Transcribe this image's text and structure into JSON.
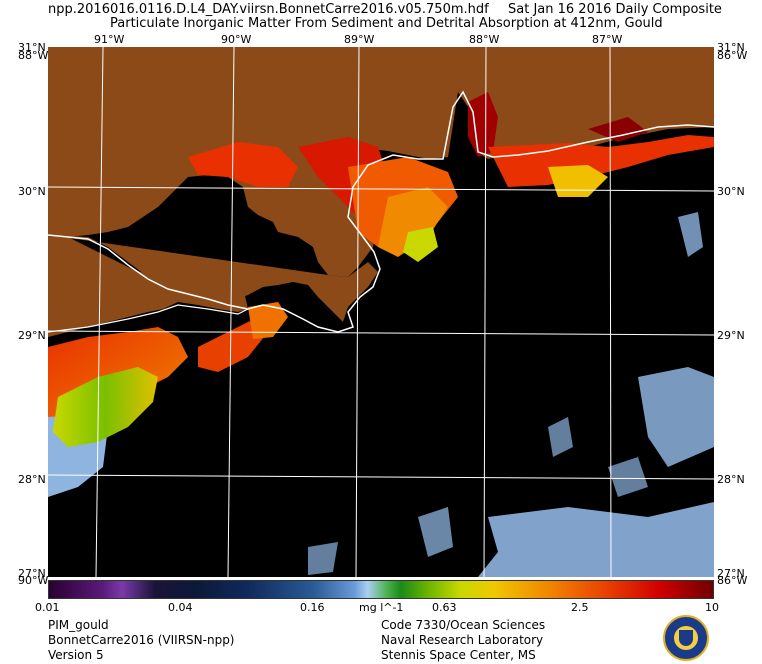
{
  "header": {
    "filename": "npp.2016016.0116.D.L4_DAY.viirsn.BonnetCarre2016.v05.750m.hdf",
    "date": "Sat Jan 16 2016 Daily Composite",
    "product": "Particulate Inorganic Matter From Sediment and Detrital Absorption at 412nm, Gould"
  },
  "map": {
    "lon_labels": [
      "91°W",
      "90°W",
      "89°W",
      "88°W",
      "87°W"
    ],
    "lat_labels": [
      "30°N",
      "29°N",
      "28°N"
    ],
    "corner_labels": {
      "top_left_lat": "31°N",
      "top_left_lon": "88°W",
      "bottom_left_lat": "27°N",
      "bottom_left_lon": "90°W",
      "top_right_lat": "31°N",
      "top_right_lon": "86°W",
      "bottom_right_lat": "27°N",
      "bottom_right_lon": "86°W"
    },
    "colors": {
      "land": "#8b4a17",
      "water_nodata": "#000000",
      "clouds_low": "#8fb4e0",
      "coast": "#ffffff",
      "grid": "#ffffff"
    }
  },
  "colorbar": {
    "ticks": [
      "0.01",
      "0.04",
      "0.16",
      "0.63",
      "2.5",
      "10"
    ],
    "units": "mg l^-1",
    "scale": "log"
  },
  "footer": {
    "left": [
      "PIM_gould",
      "BonnetCarre2016 (VIIRSN-npp)",
      "Version 5"
    ],
    "right": [
      "Code 7330/Ocean Sciences",
      "Naval Research Laboratory",
      "Stennis Space Center, MS"
    ],
    "logo_icon": "nrl-seal-icon"
  }
}
